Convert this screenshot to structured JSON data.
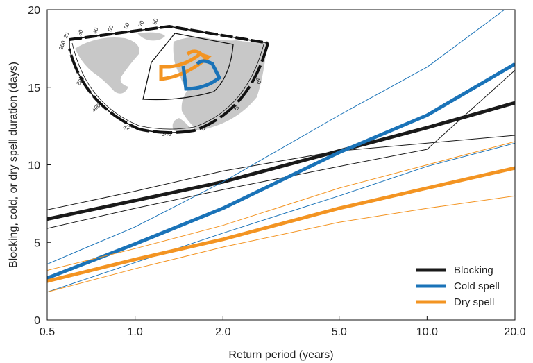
{
  "chart_data": {
    "type": "line",
    "xscale": "log",
    "xlabel": "Return period (years)",
    "ylabel": "Blocking, cold, or dry spell duration (days)",
    "xlim": [
      0.5,
      20.0
    ],
    "ylim": [
      0,
      20
    ],
    "xticks": [
      0.5,
      1.0,
      2.0,
      5.0,
      10.0,
      20.0
    ],
    "xtick_labels": [
      "0.5",
      "1.0",
      "2.0",
      "5.0",
      "10.0",
      "20.0"
    ],
    "yticks": [
      0,
      5,
      10,
      15,
      20
    ],
    "ytick_labels": [
      "0",
      "5",
      "10",
      "15",
      "20"
    ],
    "grid": false,
    "legend_position": "bottom-right",
    "series": [
      {
        "name": "Blocking",
        "color": "#1a1a1a",
        "role": "main",
        "x": [
          0.5,
          1.0,
          2.0,
          5.0,
          10.0,
          20.0
        ],
        "y": [
          6.5,
          7.7,
          8.9,
          10.9,
          12.4,
          14.0
        ]
      },
      {
        "color": "#1a1a1a",
        "role": "bound",
        "x": [
          0.5,
          1.0,
          2.0,
          5.0,
          10.0,
          20.0
        ],
        "y": [
          7.1,
          8.3,
          9.6,
          10.9,
          11.4,
          11.9
        ]
      },
      {
        "color": "#1a1a1a",
        "role": "bound",
        "x": [
          0.5,
          1.0,
          2.0,
          5.0,
          10.0,
          20.0
        ],
        "y": [
          5.9,
          7.2,
          8.4,
          9.9,
          11.0,
          16.1
        ]
      },
      {
        "name": "Cold spell",
        "color": "#1a73b8",
        "role": "main",
        "x": [
          0.5,
          1.0,
          2.0,
          5.0,
          10.0,
          20.0
        ],
        "y": [
          2.7,
          4.9,
          7.2,
          10.8,
          13.2,
          16.5
        ]
      },
      {
        "color": "#1a73b8",
        "role": "bound",
        "x": [
          0.5,
          1.0,
          2.0,
          5.0,
          10.0,
          20.0
        ],
        "y": [
          3.6,
          6.0,
          8.9,
          13.2,
          16.3,
          20.5
        ]
      },
      {
        "color": "#1a73b8",
        "role": "bound",
        "x": [
          0.5,
          1.0,
          2.0,
          5.0,
          10.0,
          20.0
        ],
        "y": [
          1.8,
          3.7,
          5.6,
          8.0,
          9.9,
          11.4
        ]
      },
      {
        "name": "Dry spell",
        "color": "#f39422",
        "role": "main",
        "x": [
          0.5,
          1.0,
          2.0,
          5.0,
          10.0,
          20.0
        ],
        "y": [
          2.5,
          3.9,
          5.2,
          7.2,
          8.5,
          9.8
        ]
      },
      {
        "color": "#f39422",
        "role": "bound",
        "x": [
          0.5,
          1.0,
          2.0,
          5.0,
          10.0,
          20.0
        ],
        "y": [
          3.2,
          4.6,
          6.1,
          8.5,
          10.0,
          11.5
        ]
      },
      {
        "color": "#f39422",
        "role": "bound",
        "x": [
          0.5,
          1.0,
          2.0,
          5.0,
          10.0,
          20.0
        ],
        "y": [
          1.8,
          3.3,
          4.7,
          6.3,
          7.2,
          8.0
        ]
      }
    ],
    "legend": [
      {
        "label": "Blocking",
        "color": "#1a1a1a"
      },
      {
        "label": "Cold spell",
        "color": "#1a73b8"
      },
      {
        "label": "Dry spell",
        "color": "#f39422"
      }
    ],
    "inset_map": {
      "longitude_labels": [
        "260",
        "280",
        "300",
        "320",
        "340",
        "0",
        "20",
        "40"
      ],
      "latitude_labels": [
        "20",
        "30",
        "40",
        "50",
        "60",
        "70",
        "80"
      ],
      "land_color": "#c8c8c8",
      "ocean_color": "#ffffff"
    }
  }
}
